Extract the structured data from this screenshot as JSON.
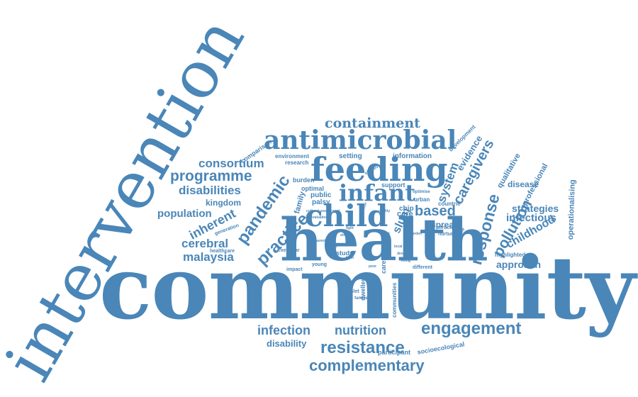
{
  "word_cloud": {
    "color": "#4a86b8",
    "words": [
      "intervention",
      "community",
      "health",
      "antimicrobial",
      "feeding",
      "containment",
      "infant",
      "child",
      "consortium",
      "programme",
      "disabilities",
      "kingdom",
      "population",
      "inherent",
      "pandemic",
      "cerebral",
      "malaysia",
      "practice",
      "based",
      "response",
      "caregivers",
      "system",
      "evidence",
      "qualitative",
      "pollution",
      "strategies",
      "infectious",
      "childhood",
      "disease",
      "professional",
      "operationalising",
      "approach",
      "engagement",
      "nutrition",
      "infection",
      "resistance",
      "complementary",
      "disability",
      "participant",
      "socioecological",
      "spread",
      "slum",
      "care",
      "chip",
      "family",
      "burden",
      "optimal",
      "public",
      "palsy",
      "support",
      "setting",
      "information",
      "environment",
      "research",
      "comparison",
      "development",
      "urban",
      "countrie",
      "structure",
      "nurture",
      "reduce",
      "highlighted",
      "healthcare",
      "generation",
      "hamlet",
      "young",
      "impact",
      "exemplar",
      "study",
      "different",
      "carer",
      "communities",
      "dweller",
      "families",
      "effective",
      "optimise",
      "cultural",
      "social",
      "account",
      "evaluation",
      "factor",
      "quality",
      "strict",
      "fight",
      "local",
      "burden",
      "design",
      "key",
      "form",
      "group",
      "poor",
      "living",
      "parent",
      "need"
    ]
  }
}
